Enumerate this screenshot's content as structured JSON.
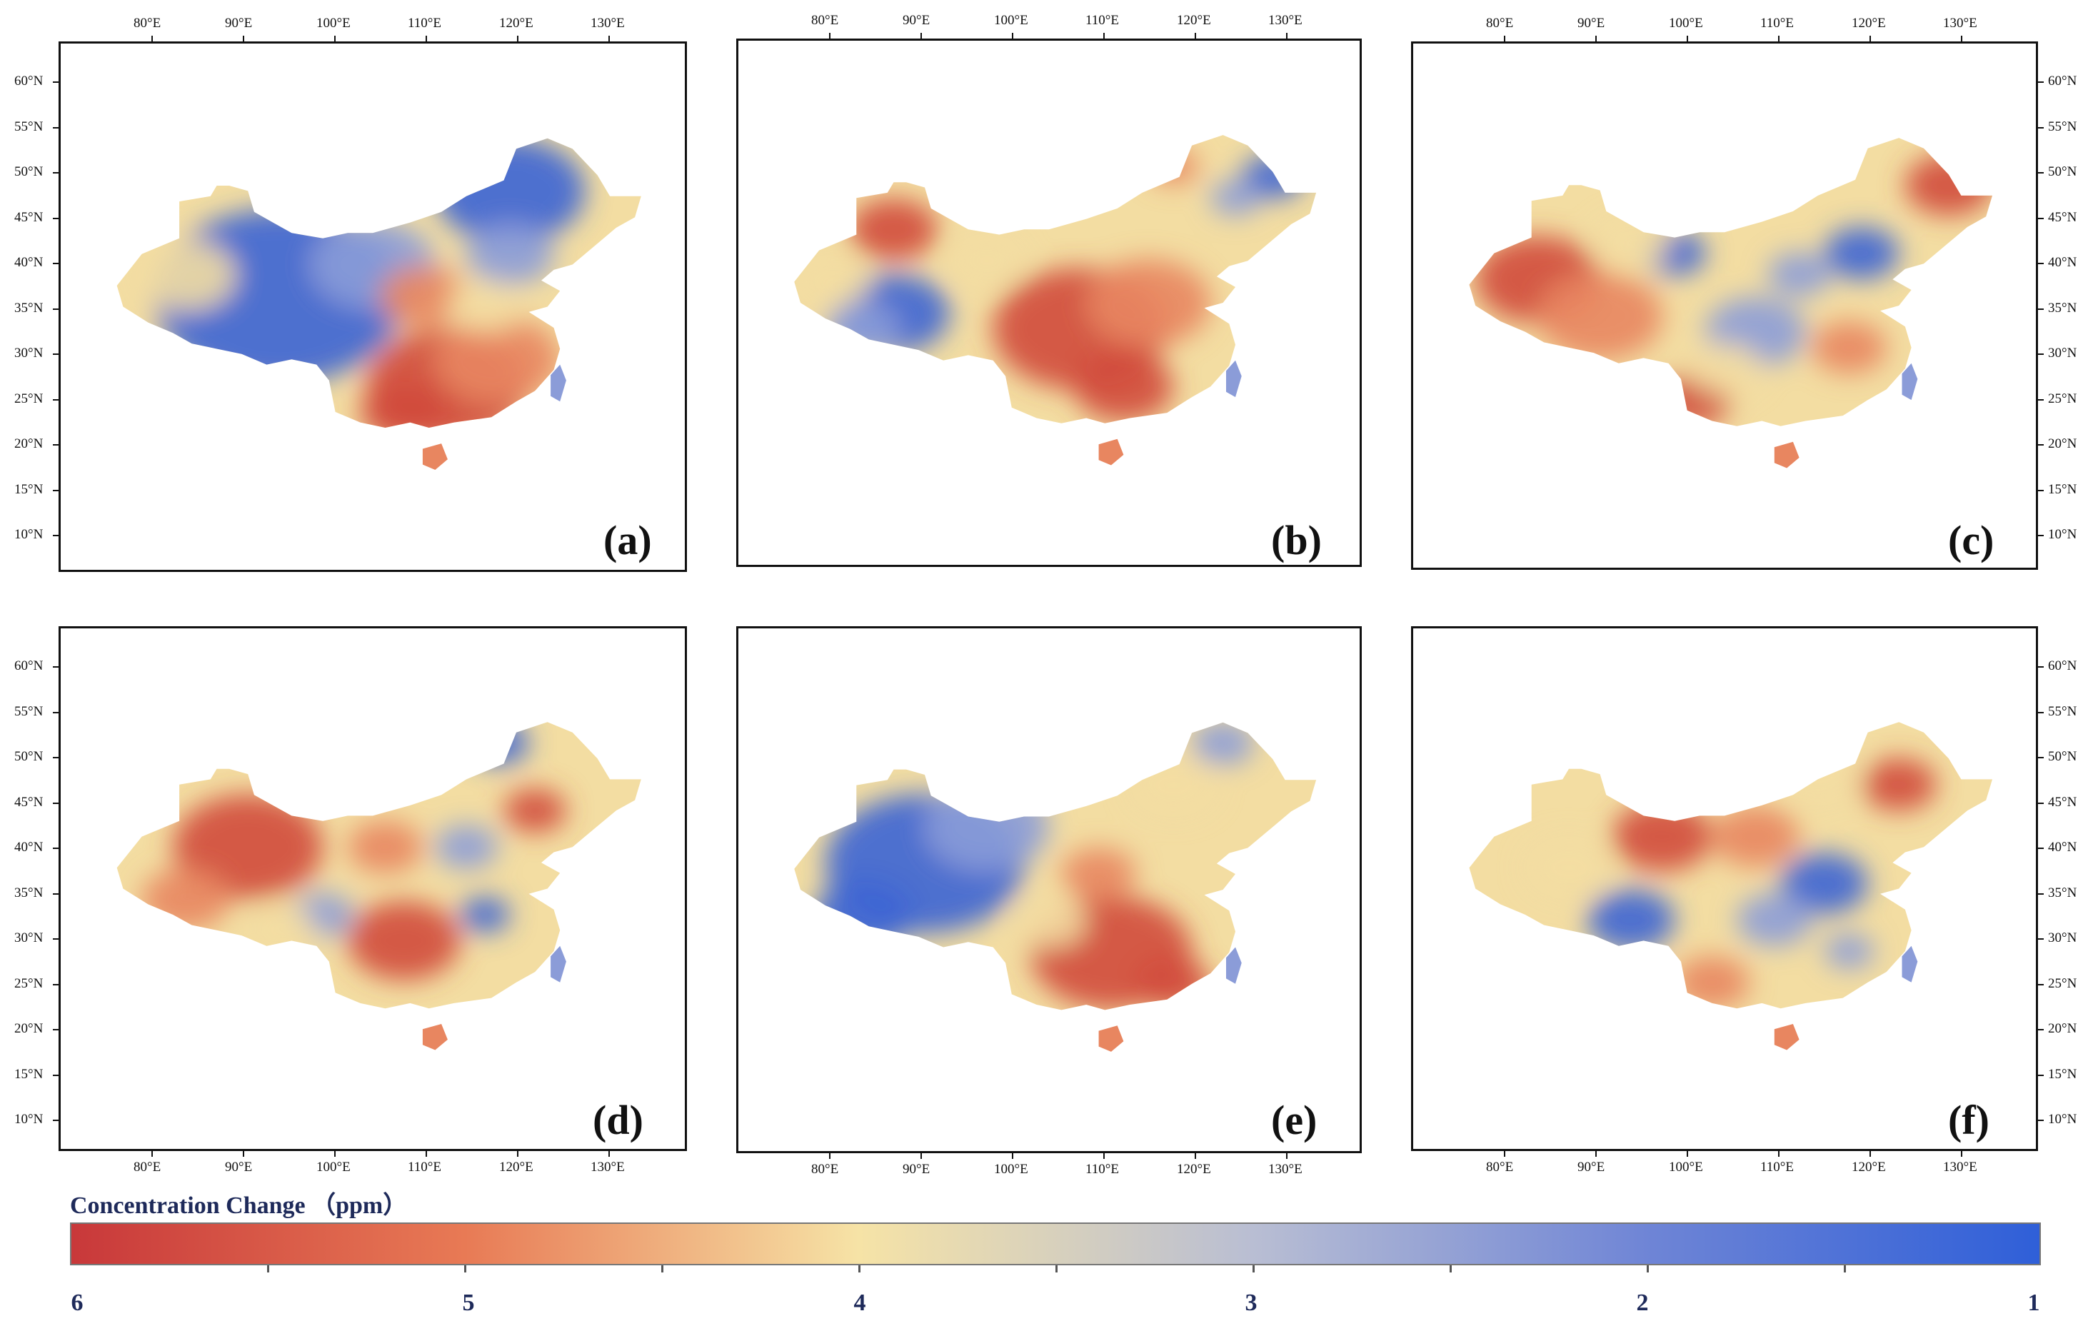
{
  "figure": {
    "panels": [
      {
        "id": "a",
        "label": "(a)",
        "pattern": "south-warm"
      },
      {
        "id": "b",
        "label": "(b)",
        "pattern": "central-warm"
      },
      {
        "id": "c",
        "label": "(c)",
        "pattern": "west-northeast-warm"
      },
      {
        "id": "d",
        "label": "(d)",
        "pattern": "mixed-warm"
      },
      {
        "id": "e",
        "label": "(e)",
        "pattern": "southeast-warm"
      },
      {
        "id": "f",
        "label": "(f)",
        "pattern": "north-band-warm"
      }
    ],
    "lon_ticks": [
      "80°E",
      "90°E",
      "100°E",
      "110°E",
      "120°E",
      "130°E"
    ],
    "lat_ticks": [
      "60°N",
      "55°N",
      "50°N",
      "45°N",
      "40°N",
      "35°N",
      "30°N",
      "25°N",
      "20°N",
      "15°N",
      "10°N"
    ],
    "colorbar": {
      "title": "Concentration Change （ppm）",
      "labels": [
        "6",
        "5",
        "4",
        "3",
        "2",
        "1"
      ],
      "colors": [
        "#c8383a",
        "#e87a55",
        "#f6e3a6",
        "#b9bed3",
        "#6f85d6",
        "#2f5fd8"
      ]
    }
  }
}
